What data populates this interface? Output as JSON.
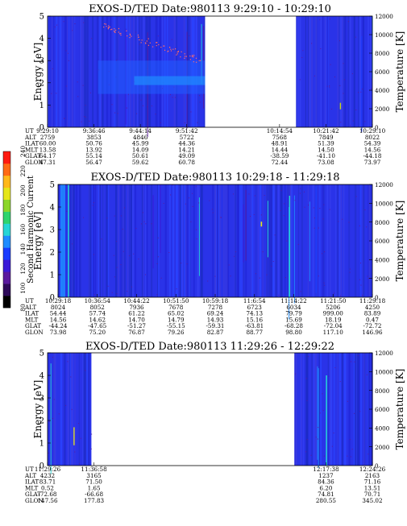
{
  "figure": {
    "colorbar": {
      "label": "Second Harmonic Current",
      "ticks": [
        "80",
        "100",
        "120",
        "140",
        "160",
        "180",
        "200",
        "220",
        "240"
      ],
      "colors": [
        "#000000",
        "#2e0a5a",
        "#5a1a9e",
        "#3a1ad8",
        "#1a3cff",
        "#1f8cff",
        "#26d6d6",
        "#2fd46e",
        "#8cd62a",
        "#e6e61a",
        "#ffb81a",
        "#ff6a14",
        "#ff1a10"
      ]
    },
    "row_labels": [
      "UT",
      "ALT",
      "ILAT",
      "MLT",
      "GLAT",
      "GLON"
    ]
  },
  "chart_data": [
    {
      "type": "heatmap",
      "title": "EXOS-D/TED   Date:980113  9:29:10 - 10:29:10",
      "ylabel": "Energy [eV]",
      "y2label": "Temperature [K]",
      "ylim": [
        0,
        5
      ],
      "y2lim": [
        0,
        12000
      ],
      "yticks": [
        "0",
        "1",
        "2",
        "3",
        "4",
        "5"
      ],
      "y2ticks": [
        "0",
        "2000",
        "4000",
        "6000",
        "8000",
        "10000",
        "12000"
      ],
      "data_segments": [
        [
          0.0,
          0.485
        ],
        [
          0.765,
          1.0
        ]
      ],
      "orbit_columns": [
        {
          "UT": "9:29:10",
          "ALT": "2759",
          "ILAT": "60.00",
          "MLT": "13.58",
          "GLAT": "64.17",
          "GLON": "47.31"
        },
        {
          "UT": "9:36:46",
          "ALT": "3853",
          "ILAT": "50.76",
          "MLT": "13.92",
          "GLAT": "55.14",
          "GLON": "56.47"
        },
        {
          "UT": "9:44:14",
          "ALT": "4846",
          "ILAT": "45.99",
          "MLT": "14.09",
          "GLAT": "50.61",
          "GLON": "59.62"
        },
        {
          "UT": "9:51:42",
          "ALT": "5722",
          "ILAT": "44.36",
          "MLT": "14.21",
          "GLAT": "49.09",
          "GLON": "60.78"
        },
        {
          "UT": "",
          "ALT": "",
          "ILAT": "",
          "MLT": "",
          "GLAT": "",
          "GLON": ""
        },
        {
          "UT": "10:14:54",
          "ALT": "7568",
          "ILAT": "48.91",
          "MLT": "14.44",
          "GLAT": "-38.59",
          "GLON": "72.44"
        },
        {
          "UT": "10:21:42",
          "ALT": "7849",
          "ILAT": "51.39",
          "MLT": "14.50",
          "GLAT": "-41.10",
          "GLON": "73.08"
        },
        {
          "UT": "10:29:10",
          "ALT": "8022",
          "ILAT": "54.39",
          "MLT": "14.56",
          "GLAT": "-44.18",
          "GLON": "73.97"
        }
      ]
    },
    {
      "type": "heatmap",
      "title": "EXOS-D/TED   Date:980113  10:29:18 - 11:29:18",
      "ylabel": "Energy [eV]",
      "y2label": "Temperature [K]",
      "ylim": [
        0,
        5
      ],
      "y2lim": [
        0,
        12000
      ],
      "yticks": [
        "0",
        "1",
        "2",
        "3",
        "4",
        "5"
      ],
      "y2ticks": [
        "0",
        "2000",
        "4000",
        "6000",
        "8000",
        "10000",
        "12000"
      ],
      "data_segments": [
        [
          0.0,
          1.0
        ]
      ],
      "orbit_columns": [
        {
          "UT": "10:29:18",
          "ALT": "8024",
          "ILAT": "54.44",
          "MLT": "14.56",
          "GLAT": "-44.24",
          "GLON": "73.98"
        },
        {
          "UT": "10:36:54",
          "ALT": "8052",
          "ILAT": "57.74",
          "MLT": "14.62",
          "GLAT": "-47.65",
          "GLON": "75.20"
        },
        {
          "UT": "10:44:22",
          "ALT": "7936",
          "ILAT": "61.22",
          "MLT": "14.70",
          "GLAT": "-51.27",
          "GLON": "76.87"
        },
        {
          "UT": "10:51:50",
          "ALT": "7678",
          "ILAT": "65.02",
          "MLT": "14.79",
          "GLAT": "-55.15",
          "GLON": "79.26"
        },
        {
          "UT": "10:59:18",
          "ALT": "7278",
          "ILAT": "69.24",
          "MLT": "14.93",
          "GLAT": "-59.31",
          "GLON": "82.87"
        },
        {
          "UT": "11:6:54",
          "ALT": "6723",
          "ILAT": "74.13",
          "MLT": "15.16",
          "GLAT": "-63.81",
          "GLON": "88.77"
        },
        {
          "UT": "11:14:22",
          "ALT": "6034",
          "ILAT": "79.79",
          "MLT": "15.69",
          "GLAT": "-68.28",
          "GLON": "98.80"
        },
        {
          "UT": "11:21:50",
          "ALT": "5206",
          "ILAT": "999.00",
          "MLT": "18.19",
          "GLAT": "-72.04",
          "GLON": "117.10"
        },
        {
          "UT": "11:29:18",
          "ALT": "4250",
          "ILAT": "83.89",
          "MLT": "0.47",
          "GLAT": "-72.72",
          "GLON": "146.96"
        }
      ]
    },
    {
      "type": "heatmap",
      "title": "EXOS-D/TED   Date:980113  11:29:26 - 12:29:22",
      "ylabel": "Energy [eV]",
      "y2label": "Temperature [K]",
      "ylim": [
        0,
        5
      ],
      "y2lim": [
        0,
        12000
      ],
      "yticks": [
        "0",
        "1",
        "2",
        "3",
        "4",
        "5"
      ],
      "y2ticks": [
        "0",
        "2000",
        "4000",
        "6000",
        "8000",
        "10000",
        "12000"
      ],
      "data_segments": [
        [
          0.0,
          0.135
        ],
        [
          0.76,
          1.0
        ]
      ],
      "orbit_columns": [
        {
          "UT": "11:29:26",
          "ALT": "4232",
          "ILAT": "83.71",
          "MLT": "0.52",
          "GLAT": "-72.68",
          "GLON": "147.56"
        },
        {
          "UT": "11:36:58",
          "ALT": "3165",
          "ILAT": "71.50",
          "MLT": "1.65",
          "GLAT": "-66.68",
          "GLON": "177.83"
        },
        {
          "UT": "",
          "ALT": "",
          "ILAT": "",
          "MLT": "",
          "GLAT": "",
          "GLON": ""
        },
        {
          "UT": "",
          "ALT": "",
          "ILAT": "",
          "MLT": "",
          "GLAT": "",
          "GLON": ""
        },
        {
          "UT": "",
          "ALT": "",
          "ILAT": "",
          "MLT": "",
          "GLAT": "",
          "GLON": ""
        },
        {
          "UT": "",
          "ALT": "",
          "ILAT": "",
          "MLT": "",
          "GLAT": "",
          "GLON": ""
        },
        {
          "UT": "12:17:38",
          "ALT": "1237",
          "ILAT": "84.36",
          "MLT": "6.20",
          "GLAT": "74.81",
          "GLON": "280.55"
        },
        {
          "UT": "12:24:26",
          "ALT": "2163",
          "ILAT": "71.16",
          "MLT": "13.51",
          "GLAT": "70.71",
          "GLON": "345.02"
        }
      ]
    }
  ]
}
